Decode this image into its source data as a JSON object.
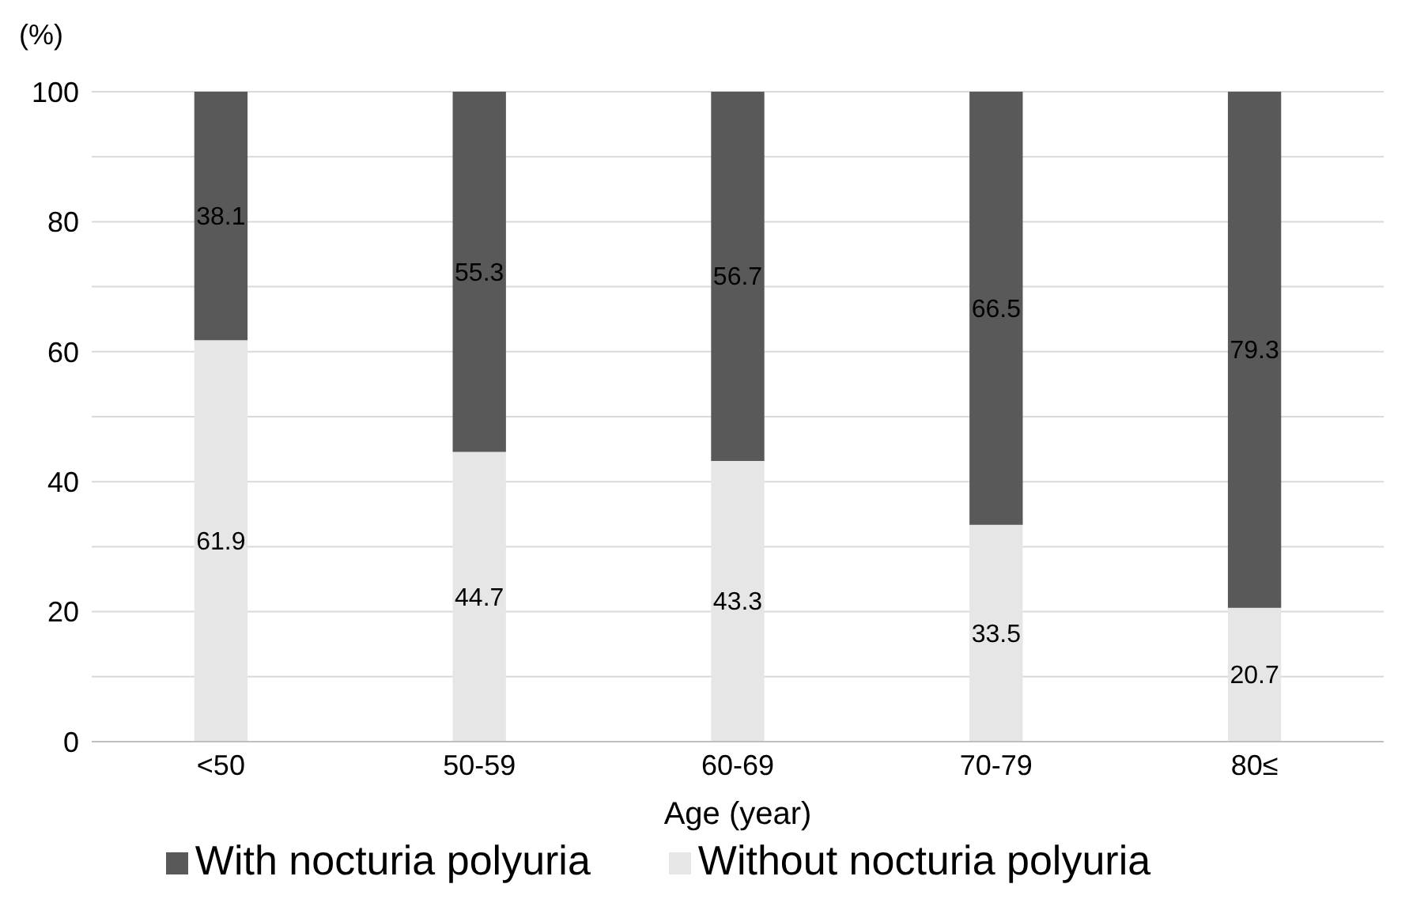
{
  "chart_data": {
    "type": "bar",
    "stacked": true,
    "xlabel": "Age (year)",
    "ylabel": "(%)",
    "categories": [
      "<50",
      "50-59",
      "60-69",
      "70-79",
      "80≤"
    ],
    "series": [
      {
        "name": "Without nocturia polyuria",
        "color": "#e6e6e6",
        "values": [
          61.9,
          44.7,
          43.3,
          33.5,
          20.7
        ]
      },
      {
        "name": "With nocturia polyuria",
        "color": "#595959",
        "values": [
          38.1,
          55.3,
          56.7,
          66.5,
          79.3
        ]
      }
    ],
    "ylim": [
      0,
      100
    ],
    "yticks": [
      0,
      {
        "value": 10,
        "label": null
      },
      20,
      {
        "value": 30,
        "label": null
      },
      40,
      {
        "value": 50,
        "label": null
      },
      60,
      {
        "value": 70,
        "label": null
      },
      80,
      {
        "value": 90,
        "label": null
      },
      100
    ],
    "grid": "y",
    "legend": "bottom",
    "data_labels": true
  }
}
